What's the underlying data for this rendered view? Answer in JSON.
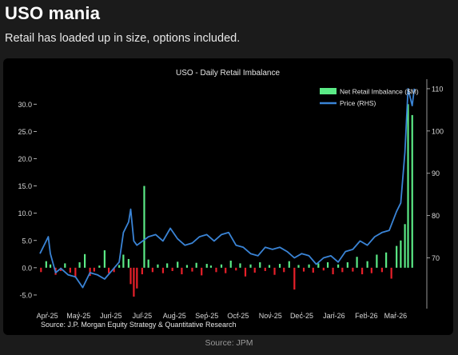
{
  "post": {
    "title": "USO mania",
    "subtitle": "Retail has loaded up in size, options included.",
    "caption": "Source: JPM"
  },
  "chart_data": {
    "type": "bar+line",
    "title": "USO - Daily Retail Imbalance",
    "source_note": "Source: J.P. Morgan Equity Strategy & Quantitative Research",
    "x_axis": {
      "type": "date",
      "range": [
        "2025-03-25",
        "2026-03-31"
      ],
      "tick_labels": [
        {
          "label": "Apr-25",
          "date": "2025-04-01"
        },
        {
          "label": "May-25",
          "date": "2025-05-01"
        },
        {
          "label": "Jun-25",
          "date": "2025-06-01"
        },
        {
          "label": "Jul-25",
          "date": "2025-07-01"
        },
        {
          "label": "Aug-25",
          "date": "2025-08-01"
        },
        {
          "label": "Sep-25",
          "date": "2025-09-01"
        },
        {
          "label": "Oct-25",
          "date": "2025-10-01"
        },
        {
          "label": "Nov-25",
          "date": "2025-11-01"
        },
        {
          "label": "Dec-25",
          "date": "2025-12-01"
        },
        {
          "label": "Jan-26",
          "date": "2026-01-01"
        },
        {
          "label": "Feb-26",
          "date": "2026-02-01"
        },
        {
          "label": "Mar-26",
          "date": "2026-03-01"
        }
      ]
    },
    "y_left": {
      "range": [
        -7.5,
        34
      ],
      "ticks": [
        -5,
        0,
        5,
        10,
        15,
        20,
        25,
        30
      ],
      "tick_labels": [
        "-5.0",
        "0.0",
        "5.0",
        "10.0",
        "15.0",
        "20.0",
        "25.0",
        "30.0"
      ]
    },
    "y_right": {
      "range": [
        58,
        111.5
      ],
      "ticks": [
        70,
        80,
        90,
        100,
        110
      ],
      "tick_labels": [
        "70",
        "80",
        "90",
        "100",
        "110"
      ]
    },
    "legend": {
      "placement": "top-right",
      "entries": [
        {
          "label": "Net Retail Imbalance ($M)",
          "kind": "bar"
        },
        {
          "label": "Price (RHS)",
          "kind": "line"
        }
      ]
    },
    "colors": {
      "positive_bar": "#5bea86",
      "negative_bar": "#e8202a",
      "price_line": "#3a84d6",
      "axis_text": "#d8d8d8",
      "background": "#000000"
    },
    "bars": [
      {
        "date": "2025-03-26",
        "value": -0.8
      },
      {
        "date": "2025-03-31",
        "value": 1.2
      },
      {
        "date": "2025-04-04",
        "value": 0.6
      },
      {
        "date": "2025-04-09",
        "value": -1.3
      },
      {
        "date": "2025-04-14",
        "value": -0.6
      },
      {
        "date": "2025-04-18",
        "value": 0.8
      },
      {
        "date": "2025-04-23",
        "value": -0.9
      },
      {
        "date": "2025-04-28",
        "value": -1.8
      },
      {
        "date": "2025-05-02",
        "value": 1.0
      },
      {
        "date": "2025-05-07",
        "value": 2.5
      },
      {
        "date": "2025-05-12",
        "value": -1.5
      },
      {
        "date": "2025-05-16",
        "value": -0.7
      },
      {
        "date": "2025-05-21",
        "value": 0.4
      },
      {
        "date": "2025-05-26",
        "value": 3.2
      },
      {
        "date": "2025-05-30",
        "value": -1.0
      },
      {
        "date": "2025-06-04",
        "value": -0.8
      },
      {
        "date": "2025-06-09",
        "value": 0.5
      },
      {
        "date": "2025-06-13",
        "value": 2.4
      },
      {
        "date": "2025-06-18",
        "value": 1.6
      },
      {
        "date": "2025-06-20",
        "value": -3.0
      },
      {
        "date": "2025-06-23",
        "value": -5.3
      },
      {
        "date": "2025-06-26",
        "value": -3.8
      },
      {
        "date": "2025-07-01",
        "value": -1.2
      },
      {
        "date": "2025-07-03",
        "value": 15.0
      },
      {
        "date": "2025-07-07",
        "value": 1.5
      },
      {
        "date": "2025-07-11",
        "value": -0.8
      },
      {
        "date": "2025-07-16",
        "value": 0.6
      },
      {
        "date": "2025-07-21",
        "value": -1.0
      },
      {
        "date": "2025-07-25",
        "value": 0.8
      },
      {
        "date": "2025-07-30",
        "value": -0.6
      },
      {
        "date": "2025-08-04",
        "value": 1.1
      },
      {
        "date": "2025-08-08",
        "value": -1.2
      },
      {
        "date": "2025-08-13",
        "value": 0.5
      },
      {
        "date": "2025-08-18",
        "value": -0.7
      },
      {
        "date": "2025-08-22",
        "value": 0.9
      },
      {
        "date": "2025-08-27",
        "value": -1.4
      },
      {
        "date": "2025-09-01",
        "value": 0.7
      },
      {
        "date": "2025-09-05",
        "value": 0.4
      },
      {
        "date": "2025-09-10",
        "value": -0.8
      },
      {
        "date": "2025-09-15",
        "value": 0.6
      },
      {
        "date": "2025-09-19",
        "value": -1.0
      },
      {
        "date": "2025-09-24",
        "value": 1.3
      },
      {
        "date": "2025-09-29",
        "value": -0.5
      },
      {
        "date": "2025-10-03",
        "value": 0.8
      },
      {
        "date": "2025-10-08",
        "value": -1.6
      },
      {
        "date": "2025-10-13",
        "value": 0.6
      },
      {
        "date": "2025-10-17",
        "value": -0.9
      },
      {
        "date": "2025-10-22",
        "value": 1.0
      },
      {
        "date": "2025-10-27",
        "value": -0.6
      },
      {
        "date": "2025-10-31",
        "value": 0.5
      },
      {
        "date": "2025-11-05",
        "value": -1.3
      },
      {
        "date": "2025-11-10",
        "value": 0.7
      },
      {
        "date": "2025-11-14",
        "value": -0.8
      },
      {
        "date": "2025-11-19",
        "value": 1.2
      },
      {
        "date": "2025-11-24",
        "value": -4.0
      },
      {
        "date": "2025-11-28",
        "value": 0.5
      },
      {
        "date": "2025-12-03",
        "value": -0.7
      },
      {
        "date": "2025-12-08",
        "value": 0.6
      },
      {
        "date": "2025-12-12",
        "value": -0.9
      },
      {
        "date": "2025-12-17",
        "value": 0.8
      },
      {
        "date": "2025-12-22",
        "value": -0.5
      },
      {
        "date": "2025-12-26",
        "value": 1.0
      },
      {
        "date": "2025-12-31",
        "value": -1.2
      },
      {
        "date": "2026-01-05",
        "value": 0.6
      },
      {
        "date": "2026-01-09",
        "value": -0.8
      },
      {
        "date": "2026-01-14",
        "value": 1.0
      },
      {
        "date": "2026-01-19",
        "value": -0.7
      },
      {
        "date": "2026-01-23",
        "value": 2.0
      },
      {
        "date": "2026-01-28",
        "value": -1.2
      },
      {
        "date": "2026-02-02",
        "value": 1.2
      },
      {
        "date": "2026-02-06",
        "value": -1.0
      },
      {
        "date": "2026-02-11",
        "value": 2.4
      },
      {
        "date": "2026-02-16",
        "value": -0.8
      },
      {
        "date": "2026-02-20",
        "value": 2.8
      },
      {
        "date": "2026-02-25",
        "value": -2.0
      },
      {
        "date": "2026-03-02",
        "value": 4.0
      },
      {
        "date": "2026-03-06",
        "value": 5.0
      },
      {
        "date": "2026-03-10",
        "value": 8.0
      },
      {
        "date": "2026-03-13",
        "value": 30.0
      },
      {
        "date": "2026-03-17",
        "value": 28.0
      }
    ],
    "price": [
      {
        "date": "2025-03-25",
        "value": 71.0
      },
      {
        "date": "2025-04-02",
        "value": 75.0
      },
      {
        "date": "2025-04-04",
        "value": 71.0
      },
      {
        "date": "2025-04-09",
        "value": 66.5
      },
      {
        "date": "2025-04-14",
        "value": 67.5
      },
      {
        "date": "2025-04-21",
        "value": 66.0
      },
      {
        "date": "2025-04-28",
        "value": 65.5
      },
      {
        "date": "2025-05-05",
        "value": 63.0
      },
      {
        "date": "2025-05-12",
        "value": 66.5
      },
      {
        "date": "2025-05-19",
        "value": 66.0
      },
      {
        "date": "2025-05-26",
        "value": 65.0
      },
      {
        "date": "2025-06-02",
        "value": 67.0
      },
      {
        "date": "2025-06-09",
        "value": 69.0
      },
      {
        "date": "2025-06-13",
        "value": 76.0
      },
      {
        "date": "2025-06-18",
        "value": 78.5
      },
      {
        "date": "2025-06-20",
        "value": 81.5
      },
      {
        "date": "2025-06-23",
        "value": 74.0
      },
      {
        "date": "2025-06-26",
        "value": 73.0
      },
      {
        "date": "2025-07-07",
        "value": 75.0
      },
      {
        "date": "2025-07-14",
        "value": 75.5
      },
      {
        "date": "2025-07-21",
        "value": 74.0
      },
      {
        "date": "2025-07-28",
        "value": 77.0
      },
      {
        "date": "2025-08-04",
        "value": 74.5
      },
      {
        "date": "2025-08-11",
        "value": 73.0
      },
      {
        "date": "2025-08-18",
        "value": 73.5
      },
      {
        "date": "2025-08-25",
        "value": 75.0
      },
      {
        "date": "2025-09-01",
        "value": 75.5
      },
      {
        "date": "2025-09-08",
        "value": 74.0
      },
      {
        "date": "2025-09-15",
        "value": 75.5
      },
      {
        "date": "2025-09-22",
        "value": 76.0
      },
      {
        "date": "2025-09-29",
        "value": 73.0
      },
      {
        "date": "2025-10-06",
        "value": 72.5
      },
      {
        "date": "2025-10-13",
        "value": 71.0
      },
      {
        "date": "2025-10-20",
        "value": 70.5
      },
      {
        "date": "2025-10-27",
        "value": 72.5
      },
      {
        "date": "2025-11-03",
        "value": 72.0
      },
      {
        "date": "2025-11-10",
        "value": 72.5
      },
      {
        "date": "2025-11-17",
        "value": 71.5
      },
      {
        "date": "2025-11-24",
        "value": 70.0
      },
      {
        "date": "2025-12-01",
        "value": 71.0
      },
      {
        "date": "2025-12-08",
        "value": 70.5
      },
      {
        "date": "2025-12-15",
        "value": 68.5
      },
      {
        "date": "2025-12-22",
        "value": 70.0
      },
      {
        "date": "2025-12-29",
        "value": 70.5
      },
      {
        "date": "2026-01-05",
        "value": 69.0
      },
      {
        "date": "2026-01-12",
        "value": 71.5
      },
      {
        "date": "2026-01-19",
        "value": 72.0
      },
      {
        "date": "2026-01-26",
        "value": 74.0
      },
      {
        "date": "2026-02-02",
        "value": 73.0
      },
      {
        "date": "2026-02-09",
        "value": 75.0
      },
      {
        "date": "2026-02-16",
        "value": 76.0
      },
      {
        "date": "2026-02-23",
        "value": 76.5
      },
      {
        "date": "2026-03-02",
        "value": 81.0
      },
      {
        "date": "2026-03-06",
        "value": 83.0
      },
      {
        "date": "2026-03-10",
        "value": 95.0
      },
      {
        "date": "2026-03-13",
        "value": 110.0
      },
      {
        "date": "2026-03-17",
        "value": 106.0
      },
      {
        "date": "2026-03-19",
        "value": 110.0
      }
    ]
  }
}
